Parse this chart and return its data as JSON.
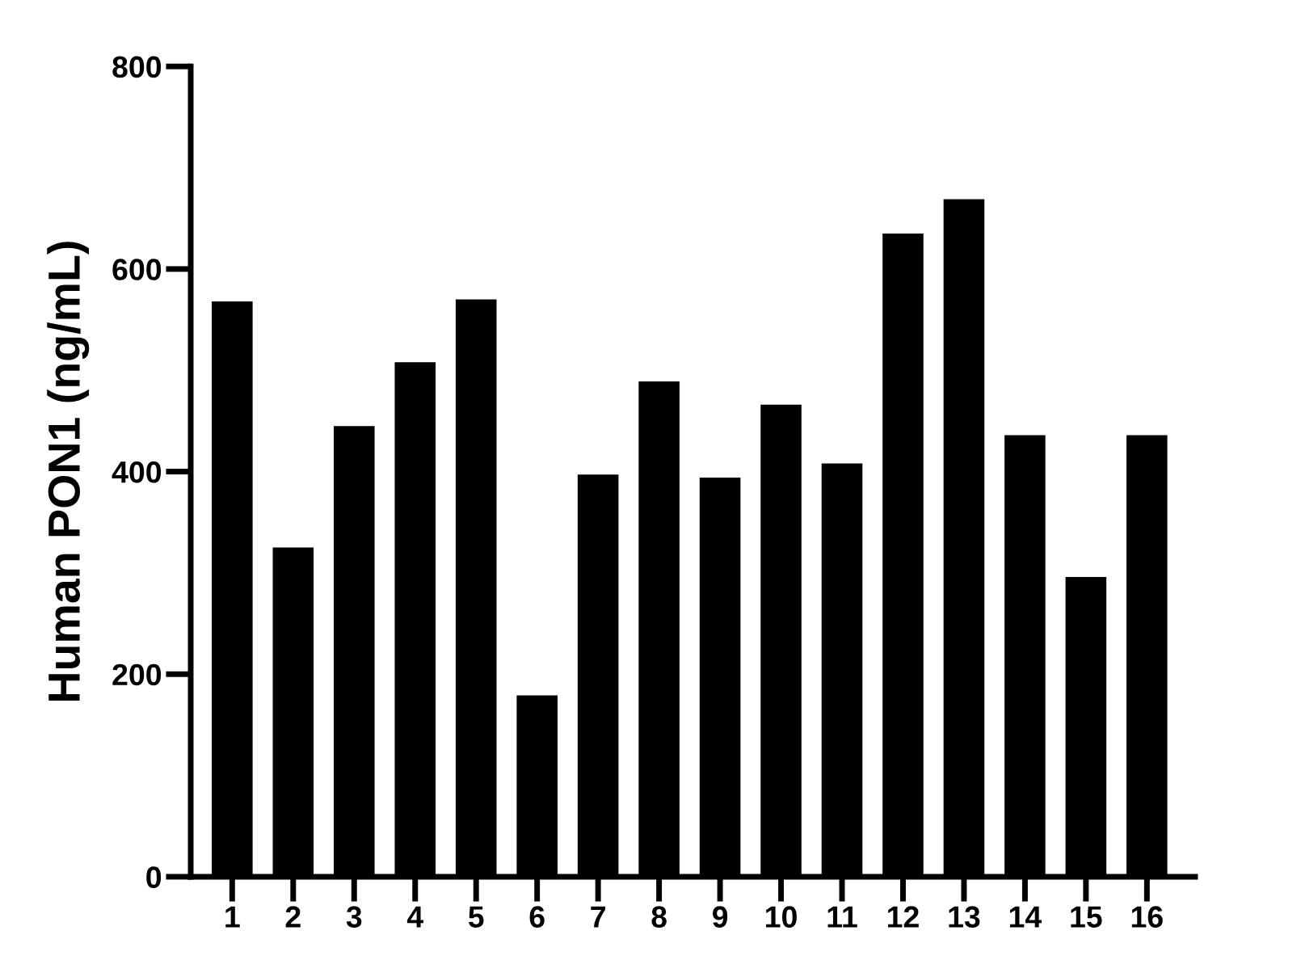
{
  "chart_data": {
    "type": "bar",
    "ylabel": "Human PON1 (ng/mL)",
    "categories": [
      "1",
      "2",
      "3",
      "4",
      "5",
      "6",
      "7",
      "8",
      "9",
      "10",
      "11",
      "12",
      "13",
      "14",
      "15",
      "16"
    ],
    "values": [
      568,
      325,
      445,
      508,
      570,
      179,
      397,
      489,
      394,
      466,
      408,
      635,
      669,
      436,
      296,
      436
    ],
    "color": "#000000",
    "ylim": [
      0,
      800
    ],
    "yticks": [
      0,
      200,
      400,
      600,
      800
    ],
    "grid": false,
    "legend": false
  }
}
